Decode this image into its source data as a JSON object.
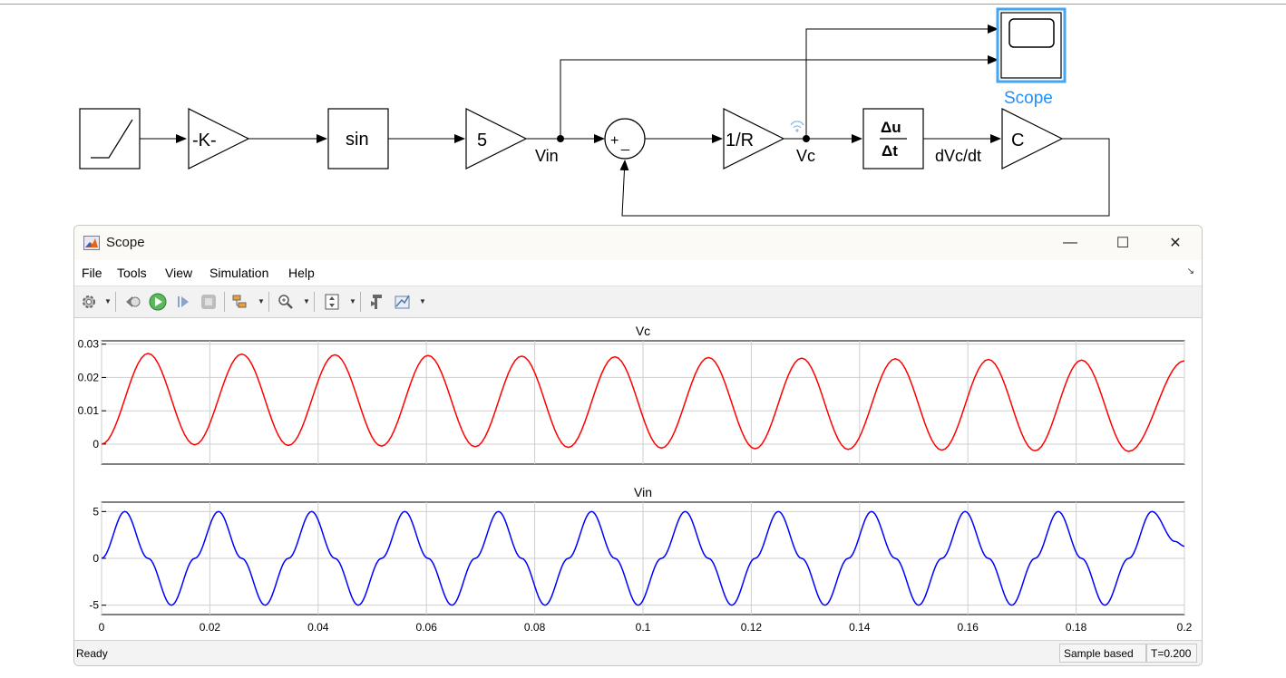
{
  "model": {
    "blocks": {
      "gain_k": "-K-",
      "sin": "sin",
      "gain_5": "5",
      "sum_plus": "+",
      "sum_minus": "_",
      "gain_1r": "1/R",
      "derivative_num": "Δu",
      "derivative_den": "Δt",
      "gain_c": "C",
      "scope_label": "Scope"
    },
    "signals": {
      "vin": "Vin",
      "vc": "Vc",
      "dvcdt": "dVc/dt"
    }
  },
  "scope_window": {
    "title": "Scope",
    "controls": {
      "minimize": "—",
      "maximize": "☐",
      "close": "✕"
    },
    "menu": [
      "File",
      "Tools",
      "View",
      "Simulation",
      "Help"
    ],
    "toolbar_icons": [
      "settings-icon",
      "step-back-icon",
      "run-icon",
      "step-forward-icon",
      "stop-icon",
      "trigger-icon",
      "zoom-icon",
      "scale-axes-icon",
      "cursor-measurement-icon",
      "signal-statistics-icon"
    ],
    "status": {
      "left": "Ready",
      "mode": "Sample based",
      "time": "T=0.200"
    }
  },
  "chart_data": [
    {
      "type": "line",
      "title": "Vc",
      "color": "#ff0000",
      "xlim": [
        0,
        0.2
      ],
      "ylim": [
        -0.006,
        0.031
      ],
      "yticks": [
        0,
        0.01,
        0.02,
        0.03
      ],
      "ytick_labels": [
        "0",
        "0.01",
        "0.02",
        "0.03"
      ],
      "grid": true,
      "series": [
        {
          "x": [
            0,
            0.0086,
            0.0172,
            0.0259,
            0.0345,
            0.0431,
            0.0517,
            0.0603,
            0.069,
            0.0776,
            0.0862,
            0.0948,
            0.1034,
            0.1121,
            0.1207,
            0.1293,
            0.1379,
            0.1466,
            0.1552,
            0.1638,
            0.1724,
            0.181,
            0.1897,
            0.2
          ],
          "values": [
            0,
            0.0272,
            -0.0002,
            0.027,
            -0.0004,
            0.0268,
            -0.0006,
            0.0266,
            -0.0008,
            0.0264,
            -0.001,
            0.0262,
            -0.0012,
            0.026,
            -0.0014,
            0.0258,
            -0.0016,
            0.0256,
            -0.0018,
            0.0254,
            -0.002,
            0.0252,
            -0.0022,
            0.025
          ]
        }
      ]
    },
    {
      "type": "line",
      "title": "Vin",
      "color": "#0000ff",
      "xlim": [
        0,
        0.2
      ],
      "ylim": [
        -6,
        6
      ],
      "yticks": [
        -5,
        0,
        5
      ],
      "ytick_labels": [
        "-5",
        "0",
        "5"
      ],
      "xticks": [
        0,
        0.02,
        0.04,
        0.06,
        0.08,
        0.1,
        0.12,
        0.14,
        0.16,
        0.18,
        0.2
      ],
      "xtick_labels": [
        "0",
        "0.02",
        "0.04",
        "0.06",
        "0.08",
        "0.1",
        "0.12",
        "0.14",
        "0.16",
        "0.18",
        "0.2"
      ],
      "grid": true,
      "series": [
        {
          "x": [
            0,
            0.0043,
            0.0086,
            0.0129,
            0.0172,
            0.0216,
            0.0259,
            0.0302,
            0.0345,
            0.0388,
            0.0431,
            0.0474,
            0.0517,
            0.056,
            0.0603,
            0.0647,
            0.069,
            0.0733,
            0.0776,
            0.0819,
            0.0862,
            0.0905,
            0.0948,
            0.0991,
            0.1034,
            0.1078,
            0.1121,
            0.1164,
            0.1207,
            0.125,
            0.1293,
            0.1336,
            0.1379,
            0.1422,
            0.1466,
            0.1509,
            0.1552,
            0.1595,
            0.1638,
            0.1681,
            0.1724,
            0.1767,
            0.181,
            0.1853,
            0.1897,
            0.194,
            0.1983,
            0.2
          ],
          "values": [
            0,
            5,
            0,
            -5,
            0,
            5,
            0,
            -5,
            0,
            5,
            0,
            -5,
            0,
            5,
            0,
            -5,
            0,
            5,
            0,
            -5,
            0,
            5,
            0,
            -5,
            0,
            5,
            0,
            -5,
            0,
            5,
            0,
            -5,
            0,
            5,
            0,
            -5,
            0,
            5,
            0,
            -5,
            0,
            5,
            0,
            -5,
            0,
            5,
            1.8,
            1.3
          ]
        }
      ]
    }
  ]
}
